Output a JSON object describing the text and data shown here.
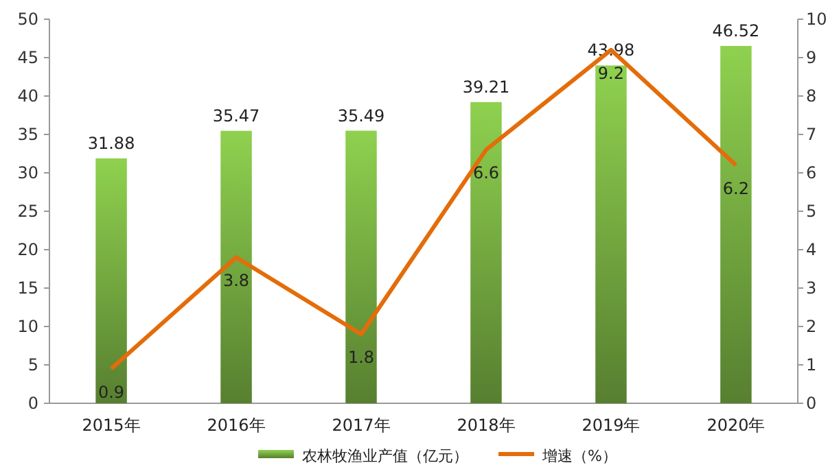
{
  "chart_data": {
    "type": "bar",
    "categories": [
      "2015年",
      "2016年",
      "2017年",
      "2018年",
      "2019年",
      "2020年"
    ],
    "series": [
      {
        "name": "农林牧渔业产值（亿元）",
        "color": "#8fd14f",
        "values": [
          31.88,
          35.47,
          35.49,
          39.21,
          43.98,
          46.52
        ]
      },
      {
        "name": "增速（%）",
        "type": "line",
        "axis": "y2",
        "color": "#e46c0a",
        "values": [
          0.9,
          3.8,
          1.8,
          6.6,
          9.2,
          6.2
        ]
      }
    ],
    "ylim": [
      0,
      50
    ],
    "yticks": [
      0,
      5,
      10,
      15,
      20,
      25,
      30,
      35,
      40,
      45,
      50
    ],
    "y2lim": [
      0,
      10
    ],
    "y2ticks": [
      0,
      1,
      2,
      3,
      4,
      5,
      6,
      7,
      8,
      9,
      10
    ],
    "data_labels": true,
    "legend": "bottom",
    "grid": false,
    "marker": "none",
    "line_style": "solid"
  }
}
